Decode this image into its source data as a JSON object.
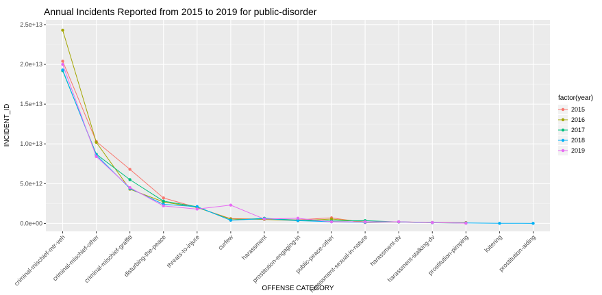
{
  "chart_data": {
    "type": "line",
    "title": "Annual Incidents Reported from 2015 to 2019 for public-disorder",
    "xlabel": "OFFENSE CATEGORY",
    "ylabel": "INCIDENT_ID",
    "categories": [
      "criminal-mischief-mtr-veh",
      "criminal-mischief-other",
      "criminal-mischief-graffiti",
      "disturbing-the-peace",
      "threats-to-injure",
      "curfew",
      "harassment",
      "prostitution-engaging-in",
      "public-peace-other",
      "harassment-sexual-in-nature",
      "harassment-dv",
      "harassment-stalking-dv",
      "prostitution-pimping",
      "loitering",
      "prostitution-aiding"
    ],
    "ylim": [
      -1000000000000,
      25600000000000
    ],
    "y_ticks": [
      0,
      5000000000000,
      10000000000000,
      15000000000000,
      20000000000000,
      25000000000000
    ],
    "y_tick_labels": [
      "0.0e+00",
      "5.0e+12",
      "1.0e+13",
      "1.5e+13",
      "2.0e+13",
      "2.5e+13"
    ],
    "legend_title": "factor(year)",
    "legend_position": "right",
    "grid": true,
    "series": [
      {
        "name": "2015",
        "color": "#F8766D",
        "values": [
          20400000000000,
          10300000000000,
          6800000000000,
          3200000000000,
          2000000000000,
          600000000000,
          550000000000,
          450000000000,
          700000000000,
          100000000000,
          200000000000,
          120000000000,
          100000000000,
          null,
          null
        ]
      },
      {
        "name": "2016",
        "color": "#A3A500",
        "values": [
          24300000000000,
          10200000000000,
          4300000000000,
          2700000000000,
          2000000000000,
          550000000000,
          500000000000,
          350000000000,
          550000000000,
          200000000000,
          180000000000,
          100000000000,
          80000000000,
          null,
          null
        ]
      },
      {
        "name": "2017",
        "color": "#00BF7D",
        "values": [
          19200000000000,
          8700000000000,
          5500000000000,
          2800000000000,
          2100000000000,
          400000000000,
          650000000000,
          400000000000,
          300000000000,
          350000000000,
          180000000000,
          80000000000,
          30000000000,
          null,
          null
        ]
      },
      {
        "name": "2018",
        "color": "#00B0F6",
        "values": [
          19300000000000,
          8600000000000,
          4400000000000,
          2400000000000,
          2100000000000,
          400000000000,
          600000000000,
          350000000000,
          200000000000,
          150000000000,
          200000000000,
          100000000000,
          50000000000,
          10000000000,
          5000000000
        ]
      },
      {
        "name": "2019",
        "color": "#E76BF3",
        "values": [
          20000000000000,
          8400000000000,
          4500000000000,
          2200000000000,
          1800000000000,
          2300000000000,
          550000000000,
          650000000000,
          200000000000,
          200000000000,
          200000000000,
          100000000000,
          20000000000,
          null,
          null
        ]
      }
    ]
  }
}
